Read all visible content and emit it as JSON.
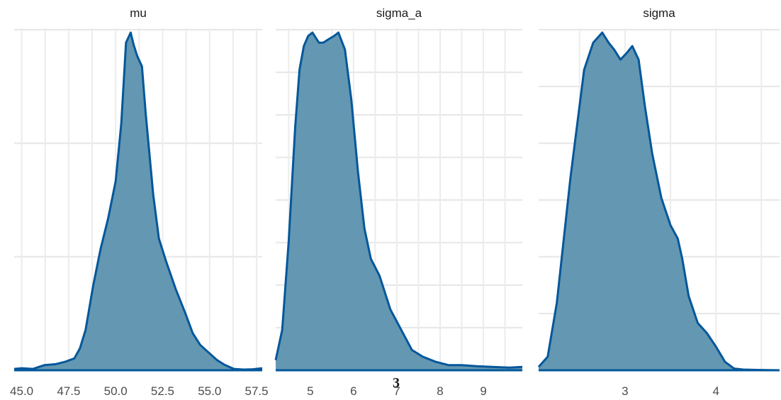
{
  "chart_data": [
    {
      "type": "area",
      "title": "mu",
      "xlim": [
        44.6,
        57.8
      ],
      "xticks": [
        45.0,
        47.5,
        50.0,
        52.5,
        55.0,
        57.5
      ],
      "xtick_labels": [
        "45.0",
        "47.5",
        "50.0",
        "52.5",
        "55.0",
        "57.5"
      ],
      "ylim": [
        0,
        1.0
      ],
      "grid": true,
      "colors": {
        "fill": "#6497b1",
        "line": "#03579b"
      },
      "x": [
        44.6,
        45.0,
        45.6,
        46.2,
        46.8,
        47.3,
        47.8,
        48.1,
        48.4,
        48.8,
        49.2,
        49.6,
        50.0,
        50.3,
        50.55,
        50.8,
        50.95,
        51.15,
        51.4,
        51.6,
        51.8,
        52.0,
        52.3,
        52.7,
        53.2,
        53.7,
        54.1,
        54.5,
        54.9,
        55.4,
        55.8,
        56.3,
        56.8,
        57.3,
        57.8
      ],
      "y": [
        0.004,
        0.006,
        0.004,
        0.015,
        0.018,
        0.025,
        0.035,
        0.065,
        0.12,
        0.25,
        0.36,
        0.45,
        0.56,
        0.73,
        0.97,
        1.0,
        0.965,
        0.93,
        0.9,
        0.76,
        0.64,
        0.52,
        0.39,
        0.32,
        0.24,
        0.17,
        0.11,
        0.075,
        0.055,
        0.03,
        0.016,
        0.004,
        0.002,
        0.003,
        0.006
      ]
    },
    {
      "type": "area",
      "title": "sigma_a",
      "xlim": [
        4.2,
        9.9
      ],
      "xticks": [
        5,
        6,
        7,
        8,
        9
      ],
      "xtick_labels": [
        "5",
        "6",
        "7",
        "8",
        "9"
      ],
      "ylim": [
        0,
        1.0
      ],
      "grid": true,
      "colors": {
        "fill": "#6497b1",
        "line": "#03579b"
      },
      "x": [
        4.2,
        4.35,
        4.5,
        4.65,
        4.75,
        4.85,
        4.95,
        5.05,
        5.2,
        5.3,
        5.42,
        5.55,
        5.65,
        5.8,
        5.95,
        6.1,
        6.25,
        6.4,
        6.6,
        6.85,
        7.1,
        7.35,
        7.6,
        7.9,
        8.2,
        8.5,
        8.85,
        9.2,
        9.6,
        9.9
      ],
      "y": [
        0.03,
        0.12,
        0.38,
        0.72,
        0.89,
        0.96,
        0.99,
        1.0,
        0.97,
        0.97,
        0.98,
        0.99,
        1.0,
        0.95,
        0.8,
        0.59,
        0.42,
        0.33,
        0.28,
        0.18,
        0.12,
        0.06,
        0.04,
        0.025,
        0.015,
        0.015,
        0.012,
        0.01,
        0.008,
        0.01
      ]
    },
    {
      "type": "area",
      "title": "sigma",
      "xlim": [
        2.05,
        4.7
      ],
      "xticks": [
        3,
        4
      ],
      "xtick_labels": [
        "3",
        "4"
      ],
      "ylim": [
        0,
        1.0
      ],
      "grid": true,
      "colors": {
        "fill": "#6497b1",
        "line": "#03579b"
      },
      "x": [
        2.05,
        2.15,
        2.25,
        2.4,
        2.55,
        2.65,
        2.75,
        2.82,
        2.88,
        2.95,
        3.02,
        3.08,
        3.15,
        3.22,
        3.3,
        3.4,
        3.5,
        3.58,
        3.63,
        3.7,
        3.8,
        3.9,
        4.0,
        4.1,
        4.2,
        4.3,
        4.45,
        4.7
      ],
      "y": [
        0.01,
        0.04,
        0.2,
        0.57,
        0.89,
        0.97,
        1.0,
        0.97,
        0.95,
        0.92,
        0.94,
        0.96,
        0.92,
        0.78,
        0.64,
        0.51,
        0.43,
        0.39,
        0.33,
        0.22,
        0.14,
        0.11,
        0.07,
        0.025,
        0.005,
        0.002,
        0.001,
        0.0
      ]
    }
  ],
  "footer": {
    "text": "3"
  }
}
